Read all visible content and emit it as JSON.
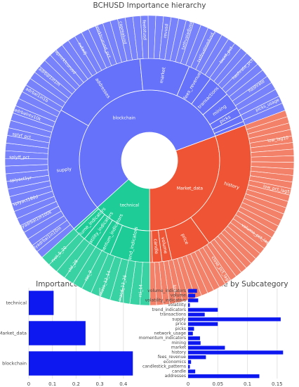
{
  "chart_data": [
    {
      "type": "sunburst",
      "title": "BCHUSD Importance hierarchy",
      "categories": [
        {
          "name": "blockchain",
          "value": 0.44,
          "color": "#6672fa"
        },
        {
          "name": "Market_data",
          "value": 0.24,
          "color": "#ef5535"
        },
        {
          "name": "technical",
          "value": 0.105,
          "color": "#1dcc97"
        }
      ],
      "subcategories": [
        {
          "name": "supply",
          "parent": "blockchain",
          "value": 0.156
        },
        {
          "name": "addresses",
          "parent": "blockchain",
          "value": 0.12
        },
        {
          "name": "market",
          "parent": "blockchain",
          "value": 0.062
        },
        {
          "name": "fees_revenue",
          "parent": "blockchain",
          "value": 0.03
        },
        {
          "name": "transactions",
          "parent": "blockchain",
          "value": 0.028
        },
        {
          "name": "mining",
          "parent": "blockchain",
          "value": 0.021
        },
        {
          "name": "picks",
          "parent": "blockchain",
          "value": 0.01
        },
        {
          "name": "network_usage",
          "parent": "blockchain",
          "value": 0.008
        },
        {
          "name": "economics",
          "parent": "blockchain",
          "value": 0.005
        },
        {
          "name": "history",
          "parent": "Market_data",
          "value": 0.16
        },
        {
          "name": "price",
          "parent": "Market_data",
          "value": 0.05
        },
        {
          "name": "volume",
          "parent": "Market_data",
          "value": 0.012
        },
        {
          "name": "candle",
          "parent": "Market_data",
          "value": 0.012
        },
        {
          "name": "candlestick_patterns",
          "parent": "Market_data",
          "value": 0.003
        },
        {
          "name": "trend_indicators",
          "parent": "technical",
          "value": 0.05
        },
        {
          "name": "momentum_indicators",
          "parent": "technical",
          "value": 0.02
        },
        {
          "name": "volatility_indicators",
          "parent": "technical",
          "value": 0.017
        },
        {
          "name": "volume_indicators",
          "parent": "technical",
          "value": 0.015
        },
        {
          "name": "volatility",
          "parent": "technical",
          "value": 0.003
        }
      ],
      "outer_labels": [
        "splyadrbal1in10m",
        "splyadrbal1in100k",
        "splyact180d",
        "splyact1yr",
        "splyff_pct",
        "splyf_pct",
        "adrbalntv10k",
        "adrbal1in1b",
        "adrbal1in1m",
        "capmrktcurusd",
        "nvtadj",
        "capmrktcurusd_pct",
        "caprealusd",
        "feetotusd",
        "revusd",
        "txtfrvaladjusd",
        "txtfrvalmedusd_pct",
        "txcnt_pct",
        "hashrate_pct",
        "hashrate",
        "picks_usage",
        "low_lag10",
        "low_pct_lag5",
        "volume_pct_lag7",
        "close_pct_lag8",
        "low",
        "rsi_14",
        "macd_13_26",
        "mass_12_14",
        "roc_9",
        "vhf_28",
        "rvol_5_20"
      ],
      "outer_label_counts": {
        "blockchain": 66,
        "Market_data": 42,
        "technical": 12
      }
    },
    {
      "type": "bar",
      "orientation": "horizontal",
      "title": "Importance by Category",
      "categories": [
        "blockchain",
        "Market_data",
        "technical"
      ],
      "values": [
        0.44,
        0.24,
        0.105
      ],
      "xlim": [
        0,
        0.46
      ],
      "xticks": [
        "0",
        "0.1",
        "0.2",
        "0.3",
        "0.4"
      ],
      "xtick_values": [
        0,
        0.1,
        0.2,
        0.3,
        0.4
      ],
      "bar_color": "#0d18f0"
    },
    {
      "type": "bar",
      "orientation": "horizontal",
      "title": "Importance by Subcategory",
      "categories": [
        "addresses",
        "candle",
        "candlestick_patterns",
        "economics",
        "fees_revenue",
        "history",
        "market",
        "mining",
        "momentum_indicators",
        "network_usage",
        "picks",
        "price",
        "supply",
        "transactions",
        "trend_indicators",
        "volatility",
        "volatility_indicators",
        "volume",
        "volume_indicators"
      ],
      "values": [
        0.12,
        0.012,
        0.003,
        0.005,
        0.03,
        0.16,
        0.062,
        0.021,
        0.02,
        0.008,
        0.01,
        0.05,
        0.156,
        0.028,
        0.05,
        0.003,
        0.017,
        0.012,
        0.015
      ],
      "xlim": [
        0,
        0.175
      ],
      "xticks": [
        "0",
        "0.05",
        "0.1",
        "0.15"
      ],
      "xtick_values": [
        0,
        0.05,
        0.1,
        0.15
      ],
      "bar_color": "#0d18f0"
    }
  ]
}
